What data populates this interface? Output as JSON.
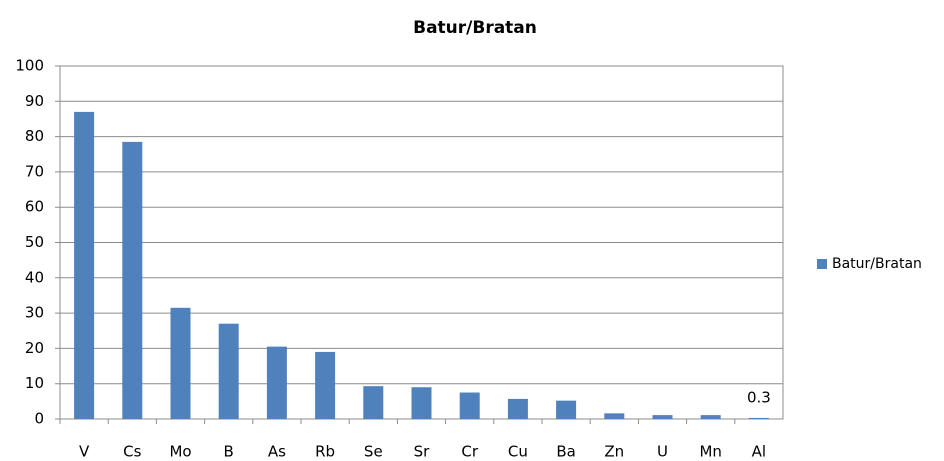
{
  "chart_data": {
    "type": "bar",
    "title": "Batur/Bratan",
    "categories": [
      "V",
      "Cs",
      "Mo",
      "B",
      "As",
      "Rb",
      "Se",
      "Sr",
      "Cr",
      "Cu",
      "Ba",
      "Zn",
      "U",
      "Mn",
      "Al"
    ],
    "series": [
      {
        "name": "Batur/Bratan",
        "color": "#4f81bd",
        "values": [
          87,
          78.5,
          31.5,
          27,
          20.5,
          19,
          9.3,
          9,
          7.5,
          5.7,
          5.2,
          1.6,
          1.1,
          1.1,
          0.3
        ],
        "value_labels": [
          null,
          null,
          null,
          null,
          null,
          null,
          null,
          null,
          null,
          null,
          null,
          null,
          null,
          null,
          "0.3"
        ]
      }
    ],
    "ylim": [
      0,
      100
    ],
    "yticks": [
      0,
      10,
      20,
      30,
      40,
      50,
      60,
      70,
      80,
      90,
      100
    ],
    "grid": true,
    "legend": "right"
  }
}
